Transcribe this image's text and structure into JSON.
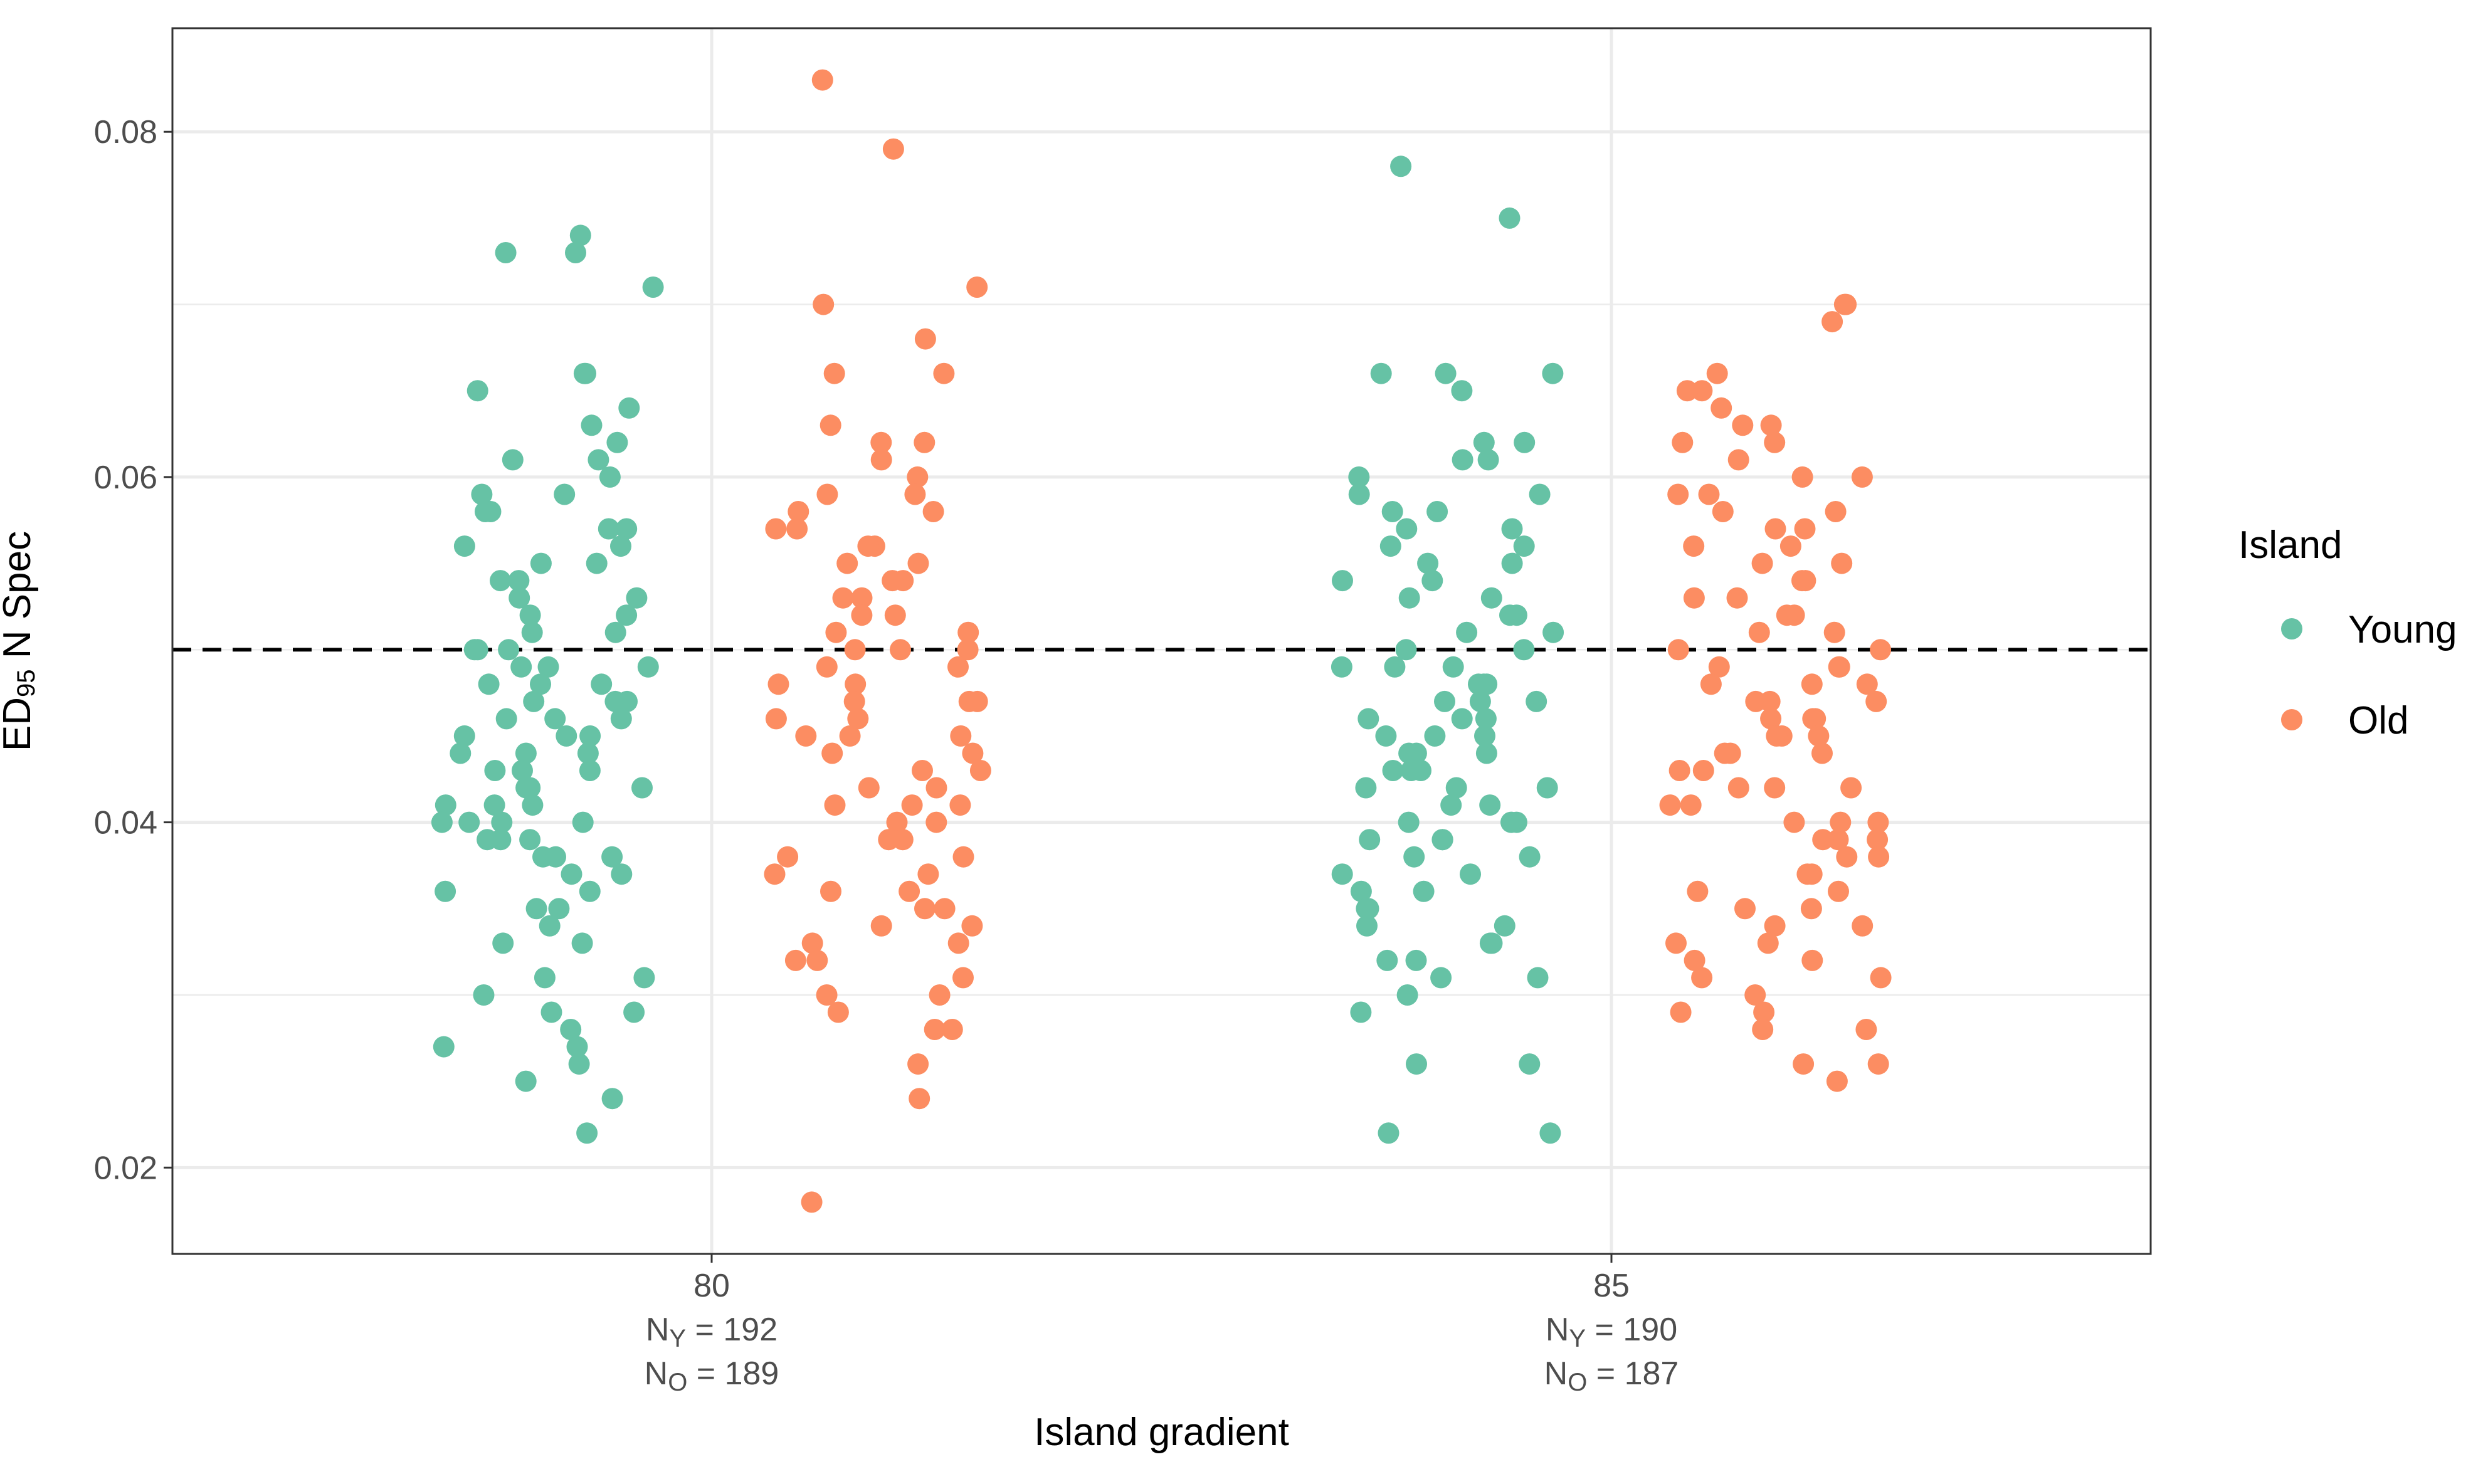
{
  "chart_data": {
    "type": "scatter",
    "subtype": "jittered-strip",
    "xlabel": "Island gradient",
    "ylabel_parts": {
      "main": "ED",
      "subscript": "95",
      "rest": " N Spec"
    },
    "ylim": [
      0.015,
      0.086
    ],
    "y_ticks": [
      {
        "value": 0.02,
        "label": "0.02"
      },
      {
        "value": 0.04,
        "label": "0.04"
      },
      {
        "value": 0.06,
        "label": "0.06"
      },
      {
        "value": 0.08,
        "label": "0.08"
      }
    ],
    "reference_line": {
      "y": 0.05,
      "style": "dashed",
      "color": "#000000"
    },
    "grid": true,
    "legend": {
      "title": "Island",
      "position": "right"
    },
    "groups": [
      {
        "x_label": "80",
        "n_lines": [
          {
            "prefix": "N",
            "sub": "Y",
            "text": " = 192"
          },
          {
            "prefix": "N",
            "sub": "O",
            "text": " = 189"
          }
        ]
      },
      {
        "x_label": "85",
        "n_lines": [
          {
            "prefix": "N",
            "sub": "Y",
            "text": " = 190"
          },
          {
            "prefix": "N",
            "sub": "O",
            "text": " = 187"
          }
        ]
      }
    ],
    "series": [
      {
        "name": "Young",
        "color": "#66C2A5",
        "groups": [
          {
            "group": "80",
            "values": [
              0.074,
              0.073,
              0.073,
              0.071,
              0.066,
              0.066,
              0.065,
              0.064,
              0.063,
              0.062,
              0.061,
              0.061,
              0.06,
              0.059,
              0.059,
              0.058,
              0.058,
              0.057,
              0.057,
              0.056,
              0.056,
              0.055,
              0.055,
              0.054,
              0.054,
              0.053,
              0.053,
              0.052,
              0.052,
              0.051,
              0.051,
              0.05,
              0.05,
              0.05,
              0.049,
              0.049,
              0.049,
              0.048,
              0.048,
              0.048,
              0.047,
              0.047,
              0.047,
              0.046,
              0.046,
              0.046,
              0.045,
              0.045,
              0.045,
              0.044,
              0.044,
              0.044,
              0.043,
              0.043,
              0.043,
              0.042,
              0.042,
              0.042,
              0.041,
              0.041,
              0.041,
              0.04,
              0.04,
              0.04,
              0.04,
              0.039,
              0.039,
              0.039,
              0.038,
              0.038,
              0.038,
              0.037,
              0.037,
              0.036,
              0.036,
              0.035,
              0.035,
              0.034,
              0.033,
              0.033,
              0.031,
              0.031,
              0.03,
              0.029,
              0.029,
              0.028,
              0.027,
              0.027,
              0.026,
              0.025,
              0.024,
              0.022
            ]
          },
          {
            "group": "85",
            "values": [
              0.078,
              0.075,
              0.066,
              0.066,
              0.066,
              0.065,
              0.062,
              0.062,
              0.061,
              0.061,
              0.06,
              0.059,
              0.059,
              0.058,
              0.058,
              0.057,
              0.057,
              0.056,
              0.056,
              0.055,
              0.055,
              0.054,
              0.054,
              0.053,
              0.053,
              0.052,
              0.052,
              0.051,
              0.051,
              0.05,
              0.05,
              0.049,
              0.049,
              0.049,
              0.048,
              0.048,
              0.048,
              0.047,
              0.047,
              0.047,
              0.046,
              0.046,
              0.046,
              0.045,
              0.045,
              0.045,
              0.044,
              0.044,
              0.044,
              0.043,
              0.043,
              0.043,
              0.042,
              0.042,
              0.042,
              0.041,
              0.041,
              0.04,
              0.04,
              0.04,
              0.039,
              0.039,
              0.039,
              0.038,
              0.038,
              0.037,
              0.037,
              0.036,
              0.036,
              0.035,
              0.035,
              0.034,
              0.034,
              0.033,
              0.033,
              0.032,
              0.032,
              0.031,
              0.031,
              0.03,
              0.029,
              0.026,
              0.026,
              0.022,
              0.022
            ]
          }
        ]
      },
      {
        "name": "Old",
        "color": "#FC8D62",
        "groups": [
          {
            "group": "80",
            "values": [
              0.083,
              0.079,
              0.071,
              0.07,
              0.068,
              0.066,
              0.066,
              0.063,
              0.062,
              0.062,
              0.061,
              0.06,
              0.059,
              0.059,
              0.058,
              0.058,
              0.057,
              0.057,
              0.056,
              0.056,
              0.055,
              0.055,
              0.054,
              0.054,
              0.053,
              0.053,
              0.052,
              0.052,
              0.051,
              0.051,
              0.05,
              0.05,
              0.05,
              0.049,
              0.049,
              0.048,
              0.048,
              0.047,
              0.047,
              0.047,
              0.046,
              0.046,
              0.045,
              0.045,
              0.045,
              0.044,
              0.044,
              0.043,
              0.043,
              0.042,
              0.042,
              0.041,
              0.041,
              0.041,
              0.04,
              0.04,
              0.039,
              0.039,
              0.038,
              0.038,
              0.037,
              0.037,
              0.036,
              0.036,
              0.035,
              0.035,
              0.034,
              0.034,
              0.033,
              0.033,
              0.032,
              0.032,
              0.031,
              0.03,
              0.03,
              0.029,
              0.028,
              0.028,
              0.026,
              0.024,
              0.018
            ]
          },
          {
            "group": "85",
            "values": [
              0.07,
              0.07,
              0.069,
              0.066,
              0.065,
              0.065,
              0.064,
              0.063,
              0.063,
              0.062,
              0.062,
              0.061,
              0.06,
              0.06,
              0.059,
              0.059,
              0.058,
              0.058,
              0.057,
              0.057,
              0.056,
              0.056,
              0.055,
              0.055,
              0.054,
              0.054,
              0.053,
              0.053,
              0.052,
              0.052,
              0.051,
              0.051,
              0.05,
              0.05,
              0.049,
              0.049,
              0.049,
              0.048,
              0.048,
              0.048,
              0.047,
              0.047,
              0.047,
              0.046,
              0.046,
              0.046,
              0.045,
              0.045,
              0.045,
              0.044,
              0.044,
              0.044,
              0.043,
              0.043,
              0.042,
              0.042,
              0.042,
              0.041,
              0.041,
              0.04,
              0.04,
              0.04,
              0.039,
              0.039,
              0.039,
              0.038,
              0.038,
              0.037,
              0.037,
              0.036,
              0.036,
              0.035,
              0.035,
              0.034,
              0.034,
              0.033,
              0.033,
              0.032,
              0.032,
              0.031,
              0.031,
              0.03,
              0.029,
              0.029,
              0.028,
              0.028,
              0.026,
              0.026,
              0.025
            ]
          }
        ]
      }
    ]
  }
}
